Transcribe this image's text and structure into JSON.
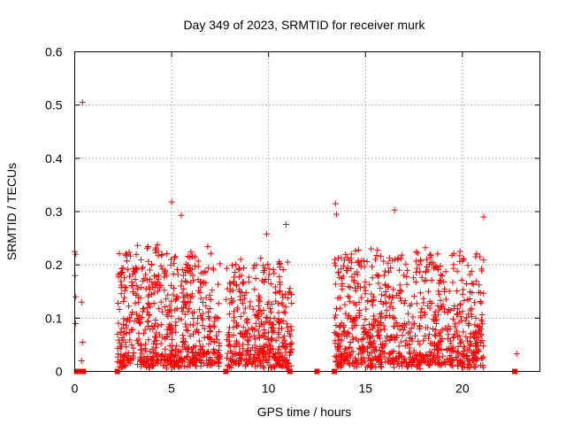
{
  "chart_data": {
    "type": "scatter",
    "title": "Day 349 of 2023, SRMTID for receiver murk",
    "xlabel": "GPS time / hours",
    "ylabel": "SRMTID / TECUs",
    "xlim": [
      0,
      24
    ],
    "ylim": [
      0,
      0.6
    ],
    "xticks": [
      0,
      5,
      10,
      15,
      20
    ],
    "yticks": [
      0,
      0.1,
      0.2,
      0.3,
      0.4,
      0.5,
      0.6
    ],
    "xtick_labels": [
      "0",
      "5",
      "10",
      "15",
      "20"
    ],
    "ytick_labels": [
      "0",
      "0.1",
      "0.2",
      "0.3",
      "0.4",
      "0.5",
      "0.6"
    ],
    "grid": true,
    "marker": "+",
    "color": "#ff0000",
    "clusters": [
      {
        "x_range": [
          2.2,
          7.5
        ],
        "y_max": 0.3,
        "density": 40
      },
      {
        "x_range": [
          7.8,
          11.2
        ],
        "y_max": 0.27,
        "density": 40
      },
      {
        "x_range": [
          13.4,
          21.1
        ],
        "y_max": 0.3,
        "density": 38
      }
    ],
    "notable_points": [
      {
        "x": 0.0,
        "y": 0.225
      },
      {
        "x": 0.05,
        "y": 0.22
      },
      {
        "x": 0.02,
        "y": 0.18
      },
      {
        "x": 0.05,
        "y": 0.14
      },
      {
        "x": 0.05,
        "y": 0.09
      },
      {
        "x": 0.4,
        "y": 0.505
      },
      {
        "x": 0.35,
        "y": 0.13
      },
      {
        "x": 0.4,
        "y": 0.055
      },
      {
        "x": 0.35,
        "y": 0.02
      },
      {
        "x": 5.0,
        "y": 0.318
      },
      {
        "x": 5.5,
        "y": 0.293
      },
      {
        "x": 13.45,
        "y": 0.315
      },
      {
        "x": 13.5,
        "y": 0.295
      },
      {
        "x": 16.5,
        "y": 0.303
      },
      {
        "x": 21.1,
        "y": 0.29
      },
      {
        "x": 10.9,
        "y": 0.276
      },
      {
        "x": 9.9,
        "y": 0.258
      },
      {
        "x": 22.8,
        "y": 0.033
      }
    ],
    "zero_markers_x": [
      0.1,
      0.2,
      0.3,
      0.45,
      2.2,
      7.8,
      11.1,
      12.5,
      13.4,
      22.7
    ]
  }
}
